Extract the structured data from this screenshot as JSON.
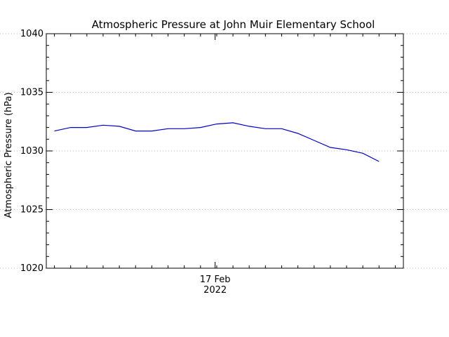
{
  "chart_data": {
    "type": "line",
    "title": "Atmospheric Pressure at John Muir Elementary School",
    "ylabel": "Atmospheric Pressure (hPa)",
    "xlabel": "",
    "ylim": [
      1020,
      1040
    ],
    "y_major_ticks": [
      1020,
      1025,
      1030,
      1035,
      1040
    ],
    "y_minor_step": 1,
    "grid": "dotted horizontal",
    "x_tick_label": {
      "line1": "17 Feb",
      "line2": "2022"
    },
    "series": [
      {
        "color": "#0000cc",
        "x": [
          0.0,
          1.0,
          2.0,
          3.0,
          4.0,
          5.0,
          6.0,
          7.0,
          8.0,
          9.0,
          10.0,
          11.0,
          12.0,
          13.0,
          14.0,
          15.0,
          16.0,
          17.0,
          18.0,
          19.0,
          20.0
        ],
        "values": [
          1031.7,
          1032.0,
          1032.0,
          1032.2,
          1032.1,
          1031.7,
          1031.7,
          1031.9,
          1031.9,
          1032.0,
          1032.3,
          1032.4,
          1032.1,
          1031.9,
          1031.9,
          1031.5,
          1030.9,
          1030.3,
          1030.1,
          1029.8,
          1029.1
        ]
      }
    ]
  }
}
